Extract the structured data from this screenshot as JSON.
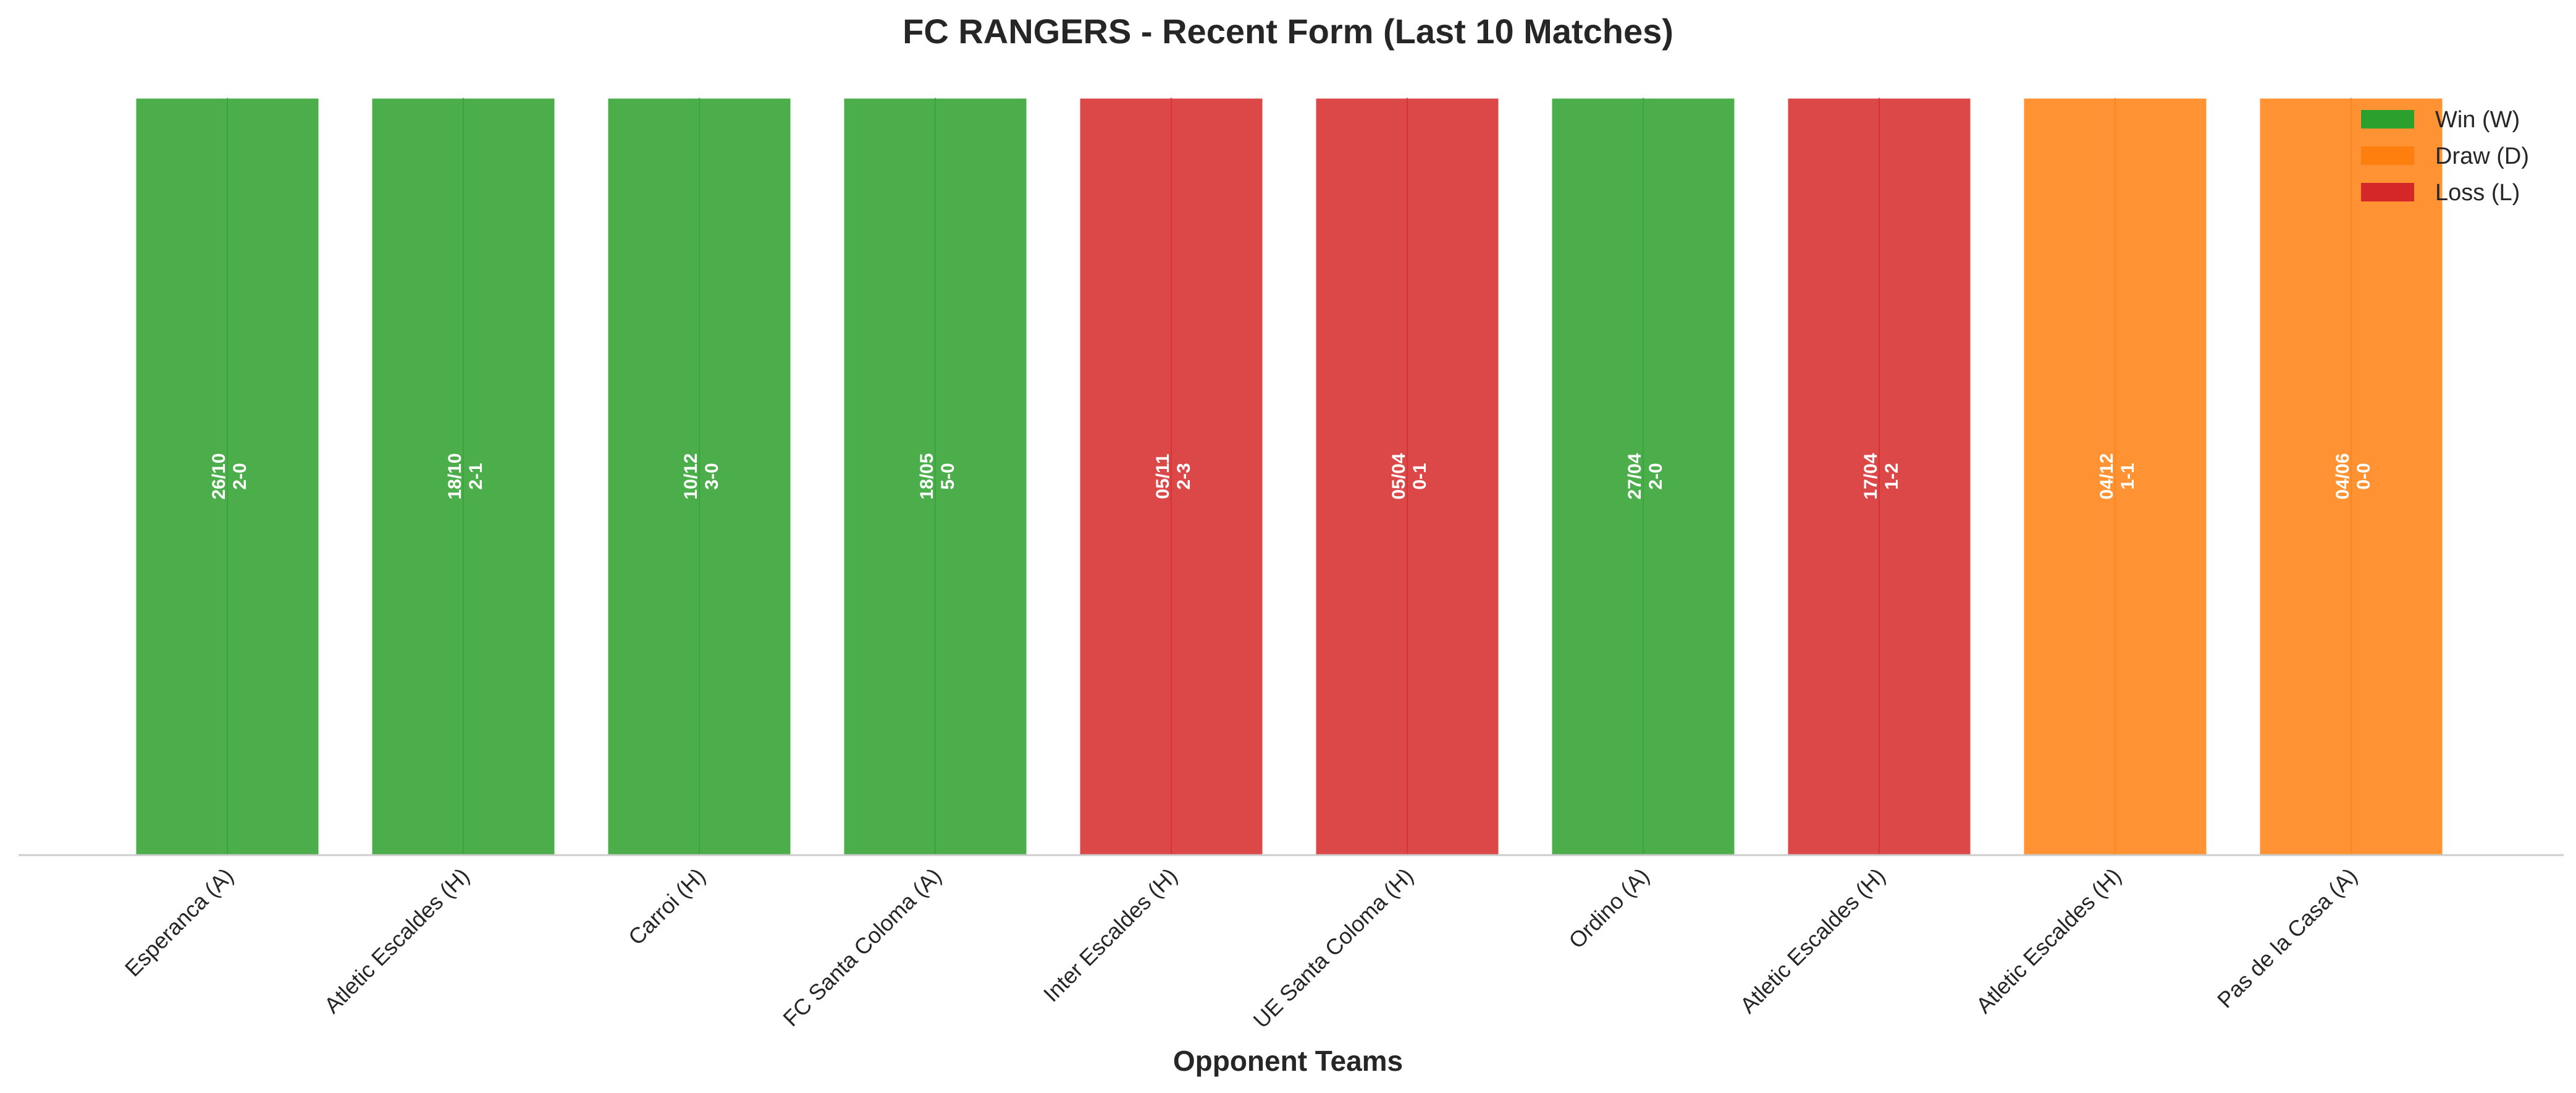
{
  "chart_data": {
    "type": "bar",
    "title": "FC RANGERS - Recent Form (Last 10 Matches)",
    "xlabel": "Opponent Teams",
    "ylabel": "",
    "ylim": [
      0,
      1
    ],
    "grid": false,
    "legend_position": "top-right",
    "colors": {
      "W": "#2ca02c",
      "D": "#ff7f0e",
      "L": "#d62728"
    },
    "legend": [
      {
        "key": "W",
        "label": "Win (W)"
      },
      {
        "key": "D",
        "label": "Draw (D)"
      },
      {
        "key": "L",
        "label": "Loss (L)"
      }
    ],
    "categories": [
      "Esperanca (A)",
      "Atletic Escaldes (H)",
      "Carroi (H)",
      "FC Santa Coloma (A)",
      "Inter Escaldes (H)",
      "UE Santa Coloma (H)",
      "Ordino (A)",
      "Atletic Escaldes (H)",
      "Atletic Escaldes (H)",
      "Pas de la Casa (A)"
    ],
    "values": [
      1,
      1,
      1,
      1,
      1,
      1,
      1,
      1,
      1,
      1
    ],
    "results": [
      "W",
      "W",
      "W",
      "W",
      "L",
      "L",
      "W",
      "L",
      "D",
      "D"
    ],
    "dates": [
      "26/10",
      "18/10",
      "10/12",
      "18/05",
      "05/11",
      "05/04",
      "27/04",
      "17/04",
      "04/12",
      "04/06"
    ],
    "scores": [
      "2-0",
      "2-1",
      "3-0",
      "5-0",
      "2-3",
      "0-1",
      "2-0",
      "1-2",
      "1-1",
      "0-0"
    ]
  }
}
